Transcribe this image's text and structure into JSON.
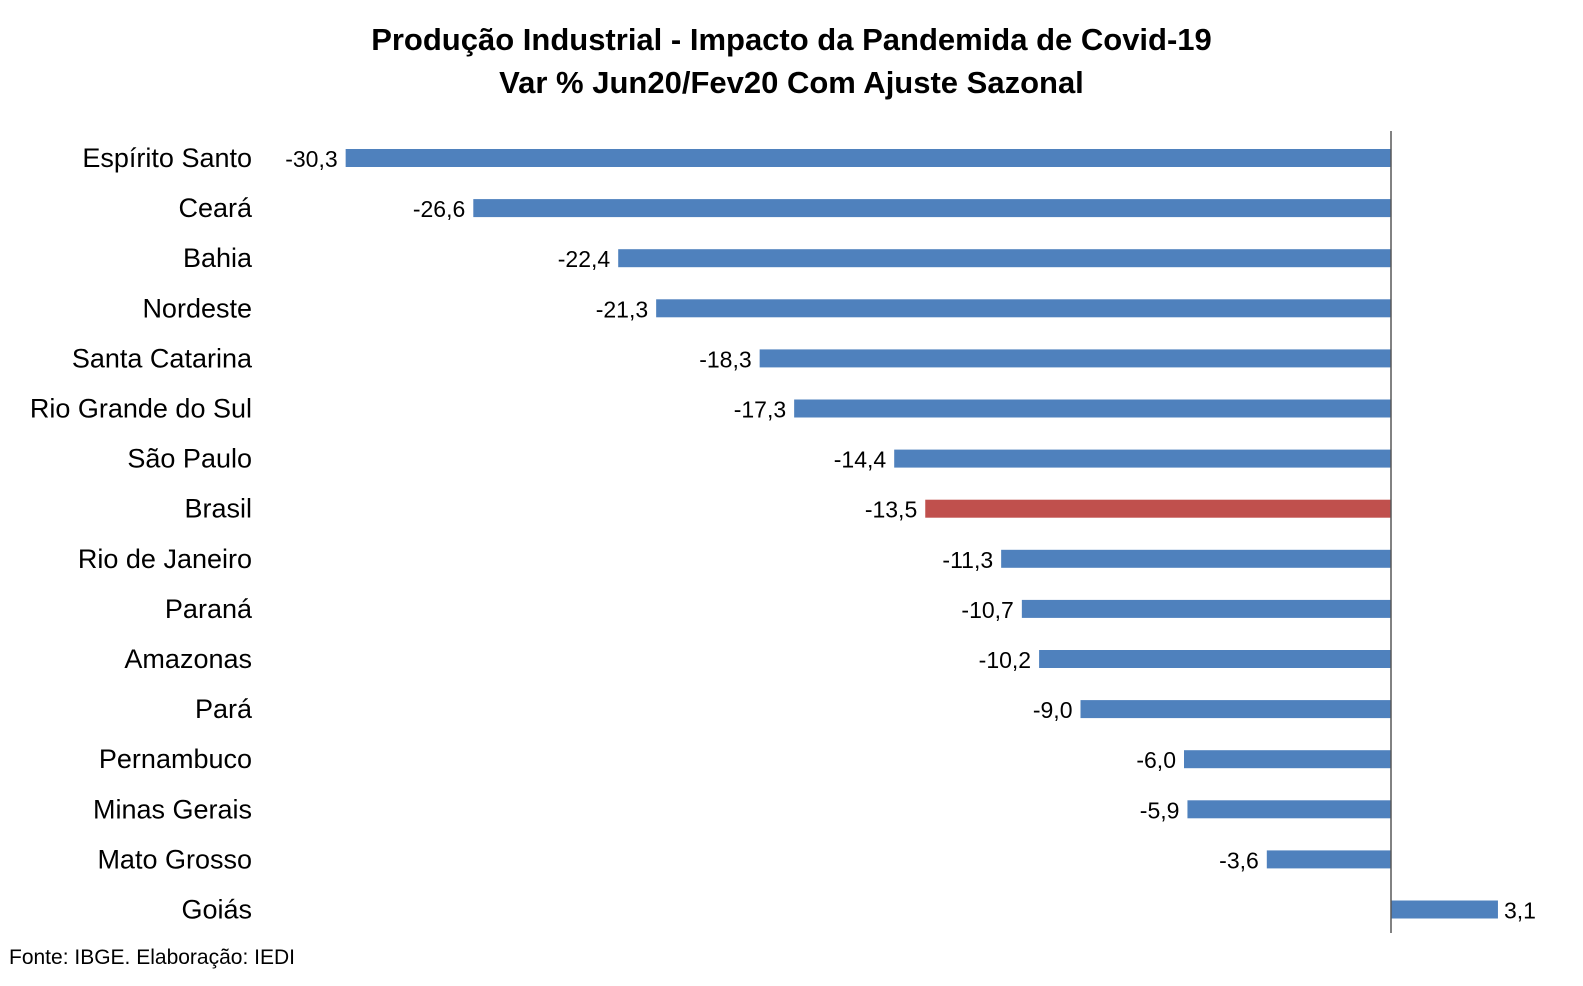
{
  "chart_data": {
    "type": "bar",
    "orientation": "horizontal",
    "title": "Produção Industrial - Impacto da Pandemida de Covid-19",
    "subtitle": "Var % Jun20/Fev20 Com Ajuste Sazonal",
    "categories": [
      "Espírito Santo",
      "Ceará",
      "Bahia",
      "Nordeste",
      "Santa Catarina",
      "Rio Grande do Sul",
      "São Paulo",
      "Brasil",
      "Rio de Janeiro",
      "Paraná",
      "Amazonas",
      "Pará",
      "Pernambuco",
      "Minas Gerais",
      "Mato Grosso",
      "Goiás"
    ],
    "values": [
      -30.3,
      -26.6,
      -22.4,
      -21.3,
      -18.3,
      -17.3,
      -14.4,
      -13.5,
      -11.3,
      -10.7,
      -10.2,
      -9.0,
      -6.0,
      -5.9,
      -3.6,
      3.1
    ],
    "data_labels": [
      "-30,3",
      "-26,6",
      "-22,4",
      "-21,3",
      "-18,3",
      "-17,3",
      "-14,4",
      "-13,5",
      "-11,3",
      "-10,7",
      "-10,2",
      "-9,0",
      "-6,0",
      "-5,9",
      "-3,6",
      "3,1"
    ],
    "highlight_category": "Brasil",
    "colors": {
      "default": "#4f81bd",
      "highlight": "#c0504d",
      "axis": "#595959"
    },
    "grid": false,
    "legend": "none"
  },
  "source": "Fonte: IBGE. Elaboração: IEDI"
}
